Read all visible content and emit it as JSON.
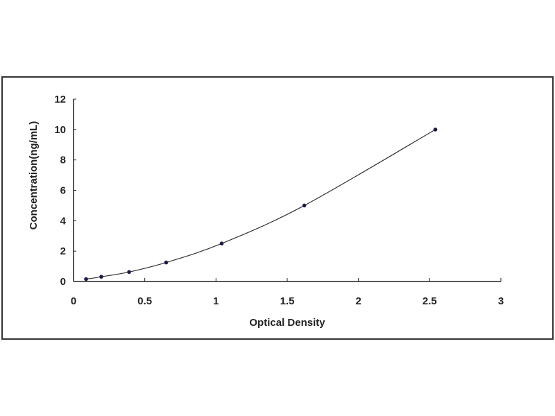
{
  "chart_data": {
    "type": "scatter",
    "title": "",
    "xlabel": "Optical Density",
    "ylabel": "Concentration(ng/mL)",
    "xlim": [
      0,
      3
    ],
    "ylim": [
      0,
      12
    ],
    "xticks": [
      "0",
      "0.5",
      "1",
      "1.5",
      "2",
      "2.5",
      "3"
    ],
    "yticks": [
      "0",
      "2",
      "4",
      "6",
      "8",
      "10",
      "12"
    ],
    "grid": false,
    "series": [
      {
        "x": [
          0.088,
          0.195,
          0.39,
          0.65,
          1.04,
          1.62,
          2.54
        ],
        "y": [
          0.156,
          0.312,
          0.625,
          1.25,
          2.5,
          5,
          10
        ],
        "fit_curve": true
      }
    ],
    "colors": {
      "points": "#1a1a4a",
      "curve": "#333333",
      "axes": "#222222"
    }
  }
}
